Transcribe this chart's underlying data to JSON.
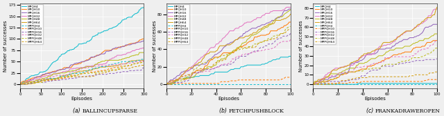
{
  "legend_labels_solid": [
    "MPQH4",
    "MPQH10",
    "MPQH16",
    "MPQH32",
    "MPQH48",
    "MPQH64"
  ],
  "legend_labels_dashed": [
    "MPPQH4",
    "MPPQH10",
    "MPPQH16",
    "MPPQH32",
    "MPPQH48",
    "MPPQH64"
  ],
  "colors": [
    "#17becf",
    "#ff7f0e",
    "#9467bd",
    "#e377c2",
    "#bcbd22",
    "#d4a017"
  ],
  "subplot_captions_italic": [
    "(a)",
    "(b)",
    "(c)"
  ],
  "subplot_captions_sc": [
    "BallInCupSparse",
    "FetchPushBlock",
    "FrankaDrawerOpen"
  ],
  "panels": [
    {
      "xlabel": "Episodes",
      "ylabel": "Number of successes",
      "xlim": [
        0,
        300
      ],
      "xticks": [
        0,
        50,
        100,
        150,
        200,
        250,
        300
      ],
      "solid_rates": [
        0.56,
        0.36,
        0.29,
        0.22,
        0.22,
        0.22
      ],
      "dashed_rates": [
        0.165,
        0.155,
        0.145,
        0.155,
        0.155,
        0.145
      ]
    },
    {
      "xlabel": "Episodes",
      "ylabel": "Number of successes",
      "xlim": [
        0,
        100
      ],
      "xticks": [
        0,
        20,
        40,
        60,
        80,
        100
      ],
      "solid_rates": [
        0.22,
        0.8,
        0.88,
        0.8,
        0.73,
        0.7
      ],
      "dashed_rates": [
        0.02,
        0.1,
        0.47,
        0.66,
        0.6,
        0.55
      ]
    },
    {
      "xlabel": "Episodes",
      "ylabel": "Number of successes",
      "xlim": [
        0,
        100
      ],
      "xticks": [
        0,
        20,
        40,
        60,
        80,
        100
      ],
      "solid_rates": [
        0.005,
        0.43,
        0.62,
        0.7,
        0.68,
        0.74
      ],
      "dashed_rates": [
        0.005,
        0.09,
        0.3,
        0.4,
        0.42,
        0.2
      ]
    }
  ],
  "bg_color": "#efefef",
  "grid_color": "white",
  "lw": 0.75,
  "legend_fontsize": 3.2,
  "tick_fontsize": 4.0,
  "label_fontsize": 5.0,
  "caption_fontsize": 5.5
}
